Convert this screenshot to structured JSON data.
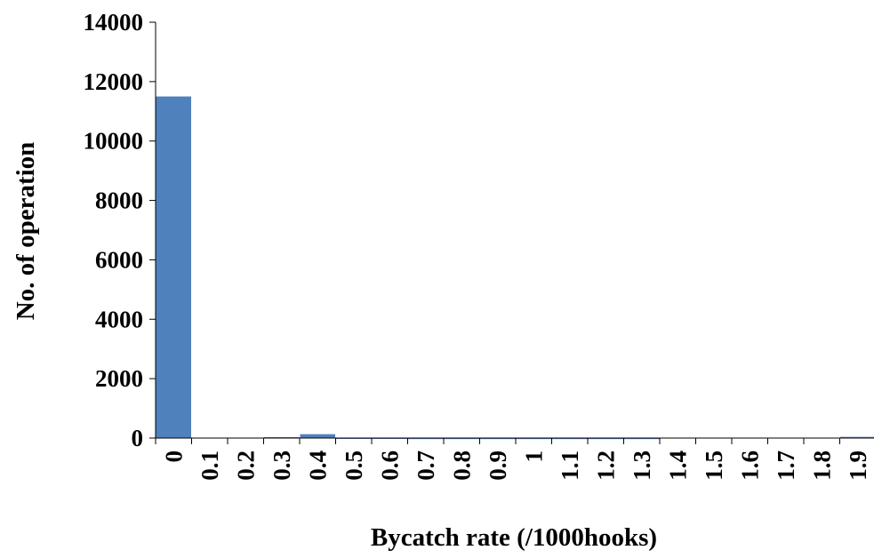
{
  "chart_data": {
    "type": "bar",
    "title": "",
    "xlabel": "Bycatch rate (/1000hooks)",
    "ylabel": "No. of operation",
    "categories": [
      "0",
      "0.1",
      "0.2",
      "0.3",
      "0.4",
      "0.5",
      "0.6",
      "0.7",
      "0.8",
      "0.9",
      "1",
      "1.1",
      "1.2",
      "1.3",
      "1.4",
      "1.5",
      "1.6",
      "1.7",
      "1.8",
      "1.9"
    ],
    "values": [
      11500,
      0,
      0,
      30,
      130,
      15,
      15,
      10,
      10,
      10,
      10,
      10,
      10,
      10,
      0,
      0,
      0,
      0,
      0,
      40
    ],
    "ylim": [
      0,
      14000
    ],
    "yticks": [
      "0",
      "2000",
      "4000",
      "6000",
      "8000",
      "10000",
      "12000",
      "14000"
    ],
    "grid": false,
    "bar_color": "#4f81bd"
  }
}
